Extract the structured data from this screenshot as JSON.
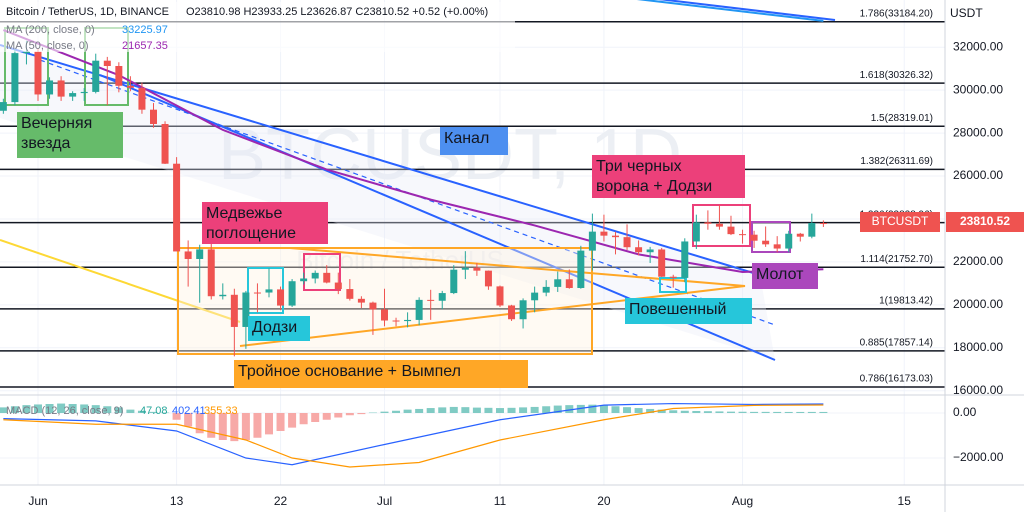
{
  "chart_data": [
    {
      "type": "candlestick",
      "header": "Bitcoin / TetherUS, 1D, BINANCE",
      "ohlc_text": "O23810.98 H23933.25 L23626.87 C23810.52 +0.52 (+0.00%)",
      "watermark": "BTCUSDT, 1D",
      "watermark_sub": "Bitcoin / TetherUS",
      "y_axis_label": "USDT",
      "symbol_tag": "BTCUSDT",
      "price_tag": "23810.52",
      "up_color": "#26a69a",
      "down_color": "#ef5350",
      "xlim": [
        -3.29,
        78.53
      ],
      "xticks": [
        {
          "value": 0,
          "label": "Jun"
        },
        {
          "value": 12,
          "label": "13"
        },
        {
          "value": 21,
          "label": "22"
        },
        {
          "value": 30,
          "label": "Jul"
        },
        {
          "value": 40,
          "label": "11"
        },
        {
          "value": 49,
          "label": "20"
        },
        {
          "value": 61,
          "label": "Aug"
        },
        {
          "value": 75,
          "label": "15"
        }
      ],
      "ylim": [
        15800,
        34200
      ],
      "yticks": [
        {
          "value": 16000,
          "label": "16000.00"
        },
        {
          "value": 18000,
          "label": "18000.00"
        },
        {
          "value": 20000,
          "label": "20000.00"
        },
        {
          "value": 22000,
          "label": "22000.00"
        },
        {
          "value": 24000,
          "label": "24000.00"
        },
        {
          "value": 26000,
          "label": "26000.00"
        },
        {
          "value": 28000,
          "label": "28000.00"
        },
        {
          "value": 30000,
          "label": "30000.00"
        },
        {
          "value": 32000,
          "label": "32000.00"
        }
      ],
      "grid": true,
      "x": [
        -3,
        -2,
        -1,
        0,
        1,
        2,
        3,
        4,
        5,
        6,
        7,
        8,
        9,
        10,
        11,
        12,
        13,
        14,
        15,
        16,
        17,
        18,
        19,
        20,
        21,
        22,
        23,
        24,
        25,
        26,
        27,
        28,
        29,
        30,
        31,
        32,
        33,
        34,
        35,
        36,
        37,
        38,
        39,
        40,
        41,
        42,
        43,
        44,
        45,
        46,
        47,
        48,
        49,
        50,
        51,
        52,
        53,
        54,
        55,
        56,
        57,
        58,
        59,
        60,
        61,
        62,
        63,
        64,
        65,
        66,
        67,
        68
      ],
      "open": [
        29040,
        29445,
        31726,
        31793,
        29800,
        30452,
        29700,
        29864,
        29919,
        31373,
        31125,
        30204,
        30109,
        29091,
        28424,
        26574,
        22487,
        22136,
        22583,
        20401,
        20468,
        18970,
        20574,
        20573,
        20719,
        19965,
        21100,
        21227,
        21490,
        21038,
        20735,
        20280,
        20104,
        19785,
        19270,
        19243,
        19297,
        20231,
        20190,
        20548,
        21637,
        21731,
        21592,
        20860,
        19970,
        19329,
        20212,
        20569,
        20836,
        21190,
        20785,
        22525,
        23410,
        23223,
        23153,
        22684,
        22451,
        22579,
        21310,
        21254,
        22952,
        23842,
        23774,
        23643,
        23293,
        23268,
        22987,
        22818,
        22622,
        23312,
        23175,
        23810.98
      ],
      "high": [
        29600,
        31900,
        32300,
        31950,
        30600,
        30650,
        29950,
        30100,
        31700,
        31550,
        31300,
        30650,
        30350,
        29400,
        28550,
        26880,
        23000,
        22800,
        22950,
        21000,
        20750,
        20650,
        21000,
        21700,
        20850,
        21200,
        21500,
        21600,
        21850,
        21500,
        21200,
        20400,
        20150,
        20750,
        19400,
        19650,
        20350,
        20700,
        20650,
        21850,
        22500,
        21950,
        21600,
        20900,
        20000,
        20300,
        20850,
        21150,
        21550,
        21650,
        22750,
        24250,
        24200,
        23400,
        23750,
        23000,
        22700,
        22650,
        21400,
        23100,
        24200,
        24400,
        24650,
        24150,
        23500,
        23450,
        23650,
        23200,
        23450,
        23350,
        24250,
        23933.25
      ],
      "low": [
        28900,
        29300,
        31200,
        29500,
        29600,
        29500,
        29500,
        29500,
        29850,
        29300,
        29900,
        29950,
        28900,
        28250,
        26560,
        22600,
        20850,
        20100,
        20250,
        20250,
        17600,
        17950,
        19650,
        20350,
        19750,
        19900,
        20950,
        21000,
        21000,
        20500,
        20200,
        19850,
        18600,
        19000,
        19000,
        18950,
        19050,
        19300,
        19800,
        20500,
        21200,
        21350,
        20700,
        19900,
        19250,
        18900,
        19650,
        20400,
        20600,
        20750,
        20750,
        21600,
        22950,
        22350,
        22550,
        22300,
        21950,
        21300,
        20800,
        21050,
        22600,
        23500,
        23500,
        23250,
        22850,
        22650,
        22700,
        22450,
        22450,
        22950,
        23100,
        23626.87
      ],
      "close": [
        29445,
        31726,
        31793,
        29800,
        30452,
        29700,
        29864,
        29919,
        31373,
        31125,
        30204,
        30109,
        29091,
        28424,
        26574,
        22487,
        22136,
        22583,
        20401,
        20468,
        18970,
        20574,
        20573,
        20719,
        19965,
        21100,
        21227,
        21490,
        21038,
        20735,
        20280,
        20104,
        19785,
        19270,
        19243,
        19297,
        20231,
        20190,
        20548,
        21637,
        21731,
        21592,
        20860,
        19970,
        19329,
        20212,
        20569,
        20836,
        21190,
        20785,
        22525,
        23410,
        23223,
        23153,
        22684,
        22451,
        22579,
        21310,
        21254,
        22952,
        23842,
        23774,
        23643,
        23293,
        23268,
        22987,
        22818,
        22622,
        23312,
        23175,
        23810,
        23810.52
      ],
      "lines": [
        {
          "name": "MA (200, close, 0)",
          "value_label": "33225.97",
          "color": "#2196f3",
          "x": [
            51,
            68
          ],
          "values": [
            34300,
            33225.97
          ]
        },
        {
          "name": "MA (50, close, 0)",
          "value_label": "21657.35",
          "color": "#9c27b0",
          "x": [
            -3,
            7,
            16,
            25,
            34,
            43,
            52,
            61,
            68
          ],
          "values": [
            32800,
            30700,
            28150,
            26300,
            24900,
            23700,
            22350,
            21530,
            21657.35
          ]
        }
      ],
      "fib_levels": [
        {
          "label": "1.786(33184.20)",
          "value": 33184.2
        },
        {
          "label": "1.618(30326.32)",
          "value": 30326.32
        },
        {
          "label": "1.5(28319.01)",
          "value": 28319.01
        },
        {
          "label": "1.382(26311.69)",
          "value": 26311.69
        },
        {
          "label": "1.236(23828.96)",
          "value": 23828.96
        },
        {
          "label": "1.114(21752.70)",
          "value": 21752.7
        },
        {
          "label": "1(19813.42)",
          "value": 19813.42
        },
        {
          "label": "0.885(17857.14)",
          "value": 17857.14
        },
        {
          "label": "0.786(16173.03)",
          "value": 16173.03
        }
      ],
      "annotations": [
        {
          "lines": [
            "Вечерняя",
            "звезда"
          ],
          "color": "#66bb6a"
        },
        {
          "lines": [
            "Канал"
          ],
          "color": "#4d8ff0"
        },
        {
          "lines": [
            "Медвежье",
            "поглощение"
          ],
          "color": "#ec407a"
        },
        {
          "lines": [
            "Три черных",
            "ворона + Додзи"
          ],
          "color": "#ec407a"
        },
        {
          "lines": [
            "Додзи"
          ],
          "color": "#26c6da"
        },
        {
          "lines": [
            "Тройное основание + Вымпел"
          ],
          "color": "#ffa726"
        },
        {
          "lines": [
            "Повешенный"
          ],
          "color": "#26c6da"
        },
        {
          "lines": [
            "Молот"
          ],
          "color": "#ab47bc"
        }
      ]
    },
    {
      "type": "macd",
      "name": "MACD (12, 26, close, 9)",
      "value_labels": [
        "47.08",
        "402.41",
        "355.33"
      ],
      "ylim": [
        -3200,
        800
      ],
      "yticks": [
        {
          "value": 0,
          "label": "0.00"
        },
        {
          "value": -2000,
          "label": "−2000.00"
        }
      ],
      "pos_color": "#80cbc4",
      "neg_color": "#f7a9a7",
      "x": [
        -3,
        -2,
        -1,
        0,
        1,
        2,
        3,
        4,
        5,
        6,
        7,
        8,
        9,
        10,
        11,
        12,
        13,
        14,
        15,
        16,
        17,
        18,
        19,
        20,
        21,
        22,
        23,
        24,
        25,
        26,
        27,
        28,
        29,
        30,
        31,
        32,
        33,
        34,
        35,
        36,
        37,
        38,
        39,
        40,
        41,
        42,
        43,
        44,
        45,
        46,
        47,
        48,
        49,
        50,
        51,
        52,
        53,
        54,
        55,
        56,
        57,
        58,
        59,
        60,
        61,
        62,
        63,
        64,
        65,
        66,
        67,
        68
      ],
      "histogram": [
        250,
        300,
        350,
        380,
        400,
        420,
        400,
        380,
        350,
        300,
        250,
        150,
        100,
        50,
        20,
        -300,
        -600,
        -900,
        -1100,
        -1200,
        -1250,
        -1200,
        -1100,
        -950,
        -800,
        -650,
        -500,
        -400,
        -300,
        -200,
        -100,
        -50,
        20,
        60,
        100,
        150,
        180,
        220,
        250,
        270,
        260,
        240,
        230,
        220,
        230,
        250,
        270,
        300,
        330,
        350,
        360,
        370,
        340,
        300,
        260,
        220,
        180,
        150,
        120,
        100,
        90,
        80,
        70,
        60,
        55,
        50,
        50,
        48,
        47,
        47,
        48,
        47.08
      ],
      "series": [
        {
          "name": "MACD",
          "color": "#2962ff",
          "x": [
            -3,
            5,
            12,
            18,
            22,
            30,
            40,
            49,
            55,
            62,
            68
          ],
          "values": [
            -250,
            -350,
            -800,
            -2000,
            -2300,
            -1400,
            -300,
            350,
            420,
            380,
            402.41
          ]
        },
        {
          "name": "Signal",
          "color": "#ff9800",
          "x": [
            -3,
            5,
            12,
            18,
            22,
            27,
            33,
            40,
            49,
            55,
            62,
            68
          ],
          "values": [
            -300,
            -500,
            -500,
            -1200,
            -2000,
            -2400,
            -2200,
            -1200,
            -300,
            200,
            340,
            355.33
          ]
        }
      ]
    }
  ]
}
